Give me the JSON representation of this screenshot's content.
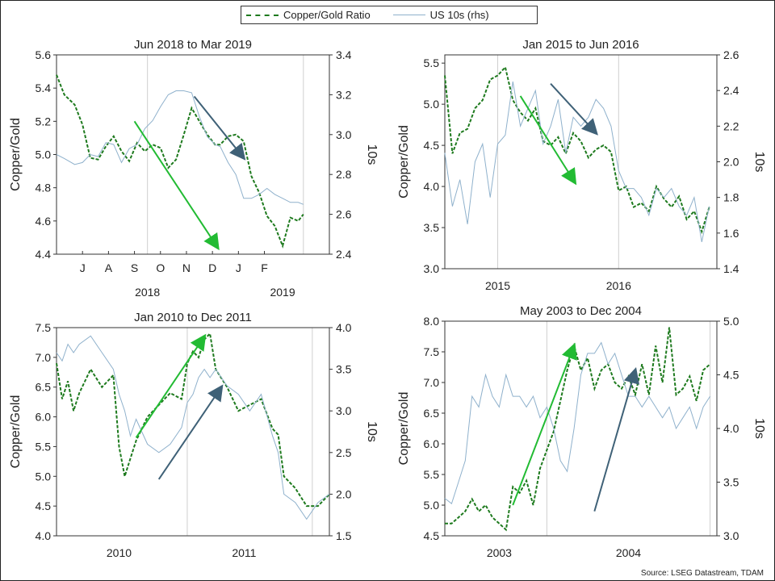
{
  "legend": {
    "series1": "Copper/Gold Ratio",
    "series2": "US 10s (rhs)"
  },
  "source": "Source: LSEG Datastream, TDAM",
  "colors": {
    "ratio": "#1e7a1e",
    "yield": "#8fb1cc",
    "arrow_green": "#22bb33",
    "arrow_blue": "#3f6177"
  },
  "chart_data": [
    {
      "type": "line",
      "title": "Jun 2018 to Mar 2019",
      "ylabel": "Copper/Gold",
      "y2label": "10s",
      "ylim": [
        4.4,
        5.6
      ],
      "yticks": [
        "4.4",
        "4.6",
        "4.8",
        "5.0",
        "5.2",
        "5.4",
        "5.6"
      ],
      "y2lim": [
        2.4,
        3.4
      ],
      "y2ticks": [
        "2.4",
        "2.6",
        "2.8",
        "3.0",
        "3.2",
        "3.4"
      ],
      "xlim": [
        0,
        10.5
      ],
      "xticks": [
        [
          "J",
          1
        ],
        [
          "A",
          2
        ],
        [
          "S",
          3
        ],
        [
          "O",
          4
        ],
        [
          "N",
          5
        ],
        [
          "D",
          6
        ],
        [
          "J",
          7
        ],
        [
          "F",
          8
        ]
      ],
      "xgrid": [
        3.5,
        9.5
      ],
      "xgroups": [
        [
          "2018",
          3.5
        ],
        [
          "2019",
          8.7
        ]
      ],
      "series": [
        {
          "name": "Copper/Gold Ratio",
          "axis": "left",
          "x": [
            0,
            0.3,
            0.7,
            1.0,
            1.3,
            1.6,
            1.9,
            2.2,
            2.5,
            2.8,
            3.1,
            3.4,
            3.7,
            4.0,
            4.3,
            4.6,
            4.9,
            5.2,
            5.5,
            5.8,
            6.1,
            6.3,
            6.6,
            6.9,
            7.2,
            7.5,
            7.8,
            8.1,
            8.4,
            8.7,
            9.0,
            9.3,
            9.5
          ],
          "y": [
            5.48,
            5.36,
            5.3,
            5.18,
            4.98,
            4.97,
            5.05,
            5.11,
            5.02,
            4.96,
            5.07,
            5.02,
            5.06,
            5.04,
            4.92,
            4.97,
            5.12,
            5.28,
            5.2,
            5.12,
            5.06,
            5.06,
            5.11,
            5.12,
            5.08,
            4.87,
            4.77,
            4.63,
            4.57,
            4.45,
            4.62,
            4.6,
            4.64
          ]
        },
        {
          "name": "US 10s (rhs)",
          "axis": "right",
          "x": [
            0,
            0.3,
            0.7,
            1.0,
            1.3,
            1.6,
            1.9,
            2.2,
            2.5,
            2.8,
            3.1,
            3.4,
            3.7,
            4.0,
            4.3,
            4.6,
            4.9,
            5.2,
            5.5,
            5.8,
            6.1,
            6.3,
            6.6,
            6.9,
            7.2,
            7.5,
            7.8,
            8.1,
            8.4,
            8.7,
            9.0,
            9.3,
            9.5
          ],
          "y": [
            2.9,
            2.88,
            2.85,
            2.86,
            2.9,
            2.89,
            2.96,
            2.95,
            2.86,
            2.93,
            2.95,
            3.03,
            3.07,
            3.14,
            3.2,
            3.22,
            3.22,
            3.21,
            3.09,
            2.99,
            2.95,
            2.94,
            2.86,
            2.8,
            2.68,
            2.68,
            2.7,
            2.73,
            2.7,
            2.68,
            2.66,
            2.66,
            2.65
          ]
        }
      ],
      "arrows": [
        {
          "color": "green",
          "from": [
            3.0,
            5.2
          ],
          "to": [
            6.2,
            4.44
          ]
        },
        {
          "color": "blue",
          "from": [
            5.3,
            5.35
          ],
          "to": [
            7.2,
            4.98
          ]
        }
      ]
    },
    {
      "type": "line",
      "title": "Jan 2015 to Jun 2016",
      "ylabel": "Copper/Gold",
      "y2label": "10s",
      "ylim": [
        3.0,
        5.6
      ],
      "yticks": [
        "3.0",
        "3.5",
        "4.0",
        "4.5",
        "5.0",
        "5.5"
      ],
      "y2lim": [
        1.4,
        2.6
      ],
      "y2ticks": [
        "1.4",
        "1.6",
        "1.8",
        "2.0",
        "2.2",
        "2.4",
        "2.6"
      ],
      "xlim": [
        0,
        18
      ],
      "xticks": [],
      "xgrid": [
        3.5,
        11.5
      ],
      "xgroups": [
        [
          "2015",
          3.5
        ],
        [
          "2016",
          11.5
        ]
      ],
      "series": [
        {
          "name": "Copper/Gold Ratio",
          "axis": "left",
          "x": [
            0,
            0.5,
            1.0,
            1.5,
            2.0,
            2.5,
            3.0,
            3.5,
            4.0,
            4.5,
            5.0,
            5.5,
            6.0,
            6.5,
            7.0,
            7.5,
            8.0,
            8.5,
            9.0,
            9.5,
            10.0,
            10.5,
            11.0,
            11.5,
            12.0,
            12.5,
            13.0,
            13.5,
            14.0,
            14.5,
            15.0,
            15.5,
            16.0,
            16.5,
            17.0,
            17.5
          ],
          "y": [
            5.35,
            4.4,
            4.65,
            4.7,
            4.95,
            5.05,
            5.3,
            5.35,
            5.45,
            5.05,
            4.9,
            4.8,
            4.95,
            4.55,
            4.5,
            4.6,
            4.4,
            4.65,
            4.55,
            4.35,
            4.45,
            4.5,
            4.42,
            3.95,
            4.0,
            3.75,
            3.8,
            3.7,
            4.0,
            3.85,
            3.75,
            3.88,
            3.6,
            3.7,
            3.45,
            3.75
          ]
        },
        {
          "name": "US 10s (rhs)",
          "axis": "right",
          "x": [
            0,
            0.5,
            1.0,
            1.5,
            2.0,
            2.5,
            3.0,
            3.5,
            4.0,
            4.5,
            5.0,
            5.5,
            6.0,
            6.5,
            7.0,
            7.5,
            8.0,
            8.5,
            9.0,
            9.5,
            10.0,
            10.5,
            11.0,
            11.5,
            12.0,
            12.5,
            13.0,
            13.5,
            14.0,
            14.5,
            15.0,
            15.5,
            16.0,
            16.5,
            17.0,
            17.5
          ],
          "y": [
            2.05,
            1.75,
            1.9,
            1.65,
            2.0,
            2.1,
            1.8,
            2.1,
            2.15,
            2.45,
            2.2,
            2.3,
            2.4,
            2.1,
            2.2,
            2.35,
            2.05,
            2.25,
            2.2,
            2.25,
            2.35,
            2.3,
            2.2,
            1.95,
            1.85,
            1.85,
            1.8,
            1.7,
            1.85,
            1.8,
            1.85,
            1.75,
            1.7,
            1.8,
            1.55,
            1.75
          ]
        }
      ],
      "arrows": [
        {
          "color": "green",
          "from": [
            5.0,
            5.1
          ],
          "to": [
            8.6,
            4.05
          ]
        },
        {
          "color": "blue",
          "from": [
            7.0,
            5.25
          ],
          "to": [
            10.0,
            4.65
          ]
        }
      ]
    },
    {
      "type": "line",
      "title": "Jan 2010 to Dec 2011",
      "ylabel": "Copper/Gold",
      "y2label": "10s",
      "ylim": [
        4.0,
        7.5
      ],
      "yticks": [
        "4.0",
        "4.5",
        "5.0",
        "5.5",
        "6.0",
        "6.5",
        "7.0",
        "7.5"
      ],
      "y2lim": [
        1.5,
        4.0
      ],
      "y2ticks": [
        "1.5",
        "2.0",
        "2.5",
        "3.0",
        "3.5",
        "4.0"
      ],
      "xlim": [
        0,
        24
      ],
      "xticks": [],
      "xgrid": [
        11.5,
        22.5
      ],
      "xgroups": [
        [
          "2010",
          5.5
        ],
        [
          "2011",
          16.5
        ]
      ],
      "series": [
        {
          "name": "Copper/Gold Ratio",
          "axis": "left",
          "x": [
            0,
            0.5,
            1,
            1.5,
            2,
            3,
            4,
            5,
            5.5,
            6,
            6.5,
            7,
            8,
            9,
            10,
            11,
            11.5,
            12,
            12.5,
            13,
            13.5,
            14,
            15,
            16,
            17,
            18,
            19,
            19.5,
            20,
            21,
            22,
            23,
            24
          ],
          "y": [
            6.9,
            6.3,
            6.6,
            6.1,
            6.4,
            6.8,
            6.5,
            6.7,
            5.5,
            5.0,
            5.3,
            5.6,
            6.0,
            6.2,
            6.4,
            6.3,
            6.9,
            7.1,
            7.0,
            7.3,
            7.4,
            6.8,
            6.5,
            6.1,
            6.2,
            6.3,
            5.8,
            5.7,
            5.0,
            4.8,
            4.5,
            4.5,
            4.7
          ]
        },
        {
          "name": "US 10s (rhs)",
          "axis": "right",
          "x": [
            0,
            0.5,
            1,
            1.5,
            2,
            3,
            4,
            5,
            5.5,
            6,
            6.5,
            7,
            8,
            9,
            10,
            11,
            11.5,
            12,
            12.5,
            13,
            13.5,
            14,
            15,
            16,
            17,
            18,
            19,
            19.5,
            20,
            21,
            22,
            23,
            24
          ],
          "y": [
            3.7,
            3.6,
            3.8,
            3.7,
            3.8,
            3.9,
            3.7,
            3.5,
            3.2,
            3.0,
            2.7,
            2.9,
            2.6,
            2.5,
            2.6,
            2.8,
            3.1,
            3.2,
            3.4,
            3.5,
            3.4,
            3.5,
            3.3,
            3.2,
            3.0,
            3.2,
            2.7,
            2.5,
            2.0,
            1.9,
            1.7,
            1.9,
            2.0
          ]
        }
      ],
      "arrows": [
        {
          "color": "green",
          "from": [
            7.0,
            5.65
          ],
          "to": [
            13.0,
            7.35
          ]
        },
        {
          "color": "blue",
          "from": [
            9.0,
            4.95
          ],
          "to": [
            14.5,
            6.5
          ]
        }
      ]
    },
    {
      "type": "line",
      "title": "May 2003 to Dec 2004",
      "ylabel": "Copper/Gold",
      "y2label": "10s",
      "ylim": [
        4.5,
        8.0
      ],
      "yticks": [
        "4.5",
        "5.0",
        "5.5",
        "6.0",
        "6.5",
        "7.0",
        "7.5",
        "8.0"
      ],
      "y2lim": [
        3.0,
        5.0
      ],
      "y2ticks": [
        "3.0",
        "3.5",
        "4.0",
        "4.5",
        "5.0"
      ],
      "xlim": [
        0,
        20
      ],
      "xticks": [],
      "xgrid": [
        7.5,
        19.5
      ],
      "xgroups": [
        [
          "2003",
          4.0
        ],
        [
          "2004",
          13.5
        ]
      ],
      "series": [
        {
          "name": "Copper/Gold Ratio",
          "axis": "left",
          "x": [
            0,
            0.5,
            1,
            1.5,
            2,
            2.5,
            3,
            3.5,
            4,
            4.5,
            5,
            5.5,
            6,
            6.5,
            7,
            7.5,
            8,
            8.5,
            9,
            9.5,
            10,
            10.5,
            11,
            11.5,
            12,
            12.5,
            13,
            13.5,
            14,
            14.5,
            15,
            15.5,
            16,
            16.5,
            17,
            17.5,
            18,
            18.5,
            19,
            19.5
          ],
          "y": [
            4.7,
            4.7,
            4.8,
            4.9,
            5.1,
            4.9,
            5.0,
            4.8,
            4.7,
            4.6,
            5.3,
            5.2,
            5.4,
            5.0,
            5.6,
            5.9,
            6.2,
            6.7,
            7.2,
            7.6,
            7.2,
            7.4,
            6.9,
            7.2,
            7.3,
            7.0,
            6.9,
            7.1,
            6.8,
            7.3,
            6.8,
            7.6,
            7.0,
            7.9,
            6.8,
            6.9,
            7.1,
            6.7,
            7.2,
            7.3
          ]
        },
        {
          "name": "US 10s (rhs)",
          "axis": "right",
          "x": [
            0,
            0.5,
            1,
            1.5,
            2,
            2.5,
            3,
            3.5,
            4,
            4.5,
            5,
            5.5,
            6,
            6.5,
            7,
            7.5,
            8,
            8.5,
            9,
            9.5,
            10,
            10.5,
            11,
            11.5,
            12,
            12.5,
            13,
            13.5,
            14,
            14.5,
            15,
            15.5,
            16,
            16.5,
            17,
            17.5,
            18,
            18.5,
            19,
            19.5
          ],
          "y": [
            3.35,
            3.3,
            3.5,
            3.7,
            4.3,
            4.2,
            4.5,
            4.3,
            4.2,
            4.5,
            4.3,
            4.3,
            4.2,
            4.3,
            4.1,
            4.2,
            4.0,
            3.7,
            3.6,
            4.0,
            4.5,
            4.7,
            4.7,
            4.8,
            4.6,
            4.7,
            4.5,
            4.3,
            4.3,
            4.2,
            4.3,
            4.2,
            4.1,
            4.2,
            4.0,
            4.1,
            4.2,
            4.0,
            4.2,
            4.3
          ]
        }
      ],
      "arrows": [
        {
          "color": "green",
          "from": [
            5.0,
            5.0
          ],
          "to": [
            9.5,
            7.6
          ]
        },
        {
          "color": "blue",
          "from": [
            11.0,
            4.9
          ],
          "to": [
            14.0,
            7.2
          ]
        }
      ]
    }
  ]
}
